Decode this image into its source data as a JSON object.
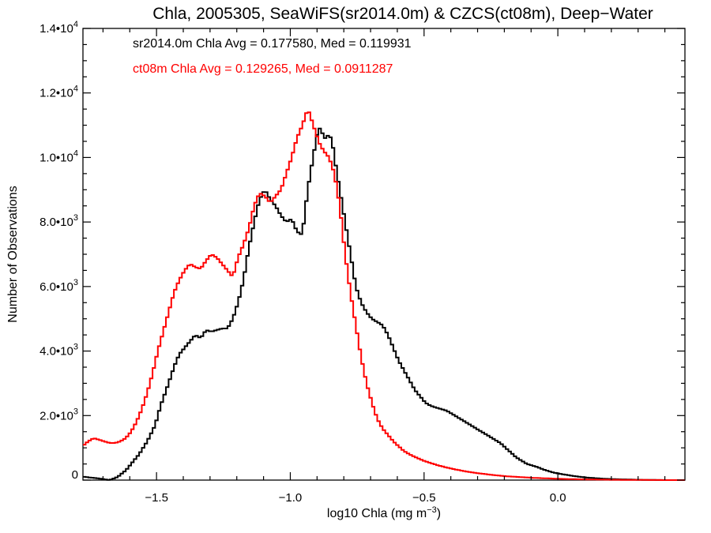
{
  "chart_data": {
    "type": "line",
    "title": "Chla, 2005305, SeaWiFS(sr2014.0m) & CZCS(ct08m), Deep−Water",
    "xlabel": "log10 Chla (mg m",
    "xlabel_sup": "−3",
    "xlabel_close": ")",
    "ylabel": "Number of Observations",
    "xlim": [
      -1.775,
      0.475
    ],
    "ylim": [
      0,
      14000
    ],
    "grid": false,
    "legend": "annotation text top-left",
    "x_ticks": [
      {
        "value": -1.5,
        "label": "−1.5"
      },
      {
        "value": -1.0,
        "label": "−1.0"
      },
      {
        "value": -0.5,
        "label": "−0.5"
      },
      {
        "value": 0.0,
        "label": "0.0"
      }
    ],
    "y_ticks": [
      {
        "value": 0,
        "label": "0",
        "exp": ""
      },
      {
        "value": 2000,
        "label": "2.0•10",
        "exp": "3"
      },
      {
        "value": 4000,
        "label": "4.0•10",
        "exp": "3"
      },
      {
        "value": 6000,
        "label": "6.0•10",
        "exp": "3"
      },
      {
        "value": 8000,
        "label": "8.0•10",
        "exp": "3"
      },
      {
        "value": 10000,
        "label": "1.0•10",
        "exp": "4"
      },
      {
        "value": 12000,
        "label": "1.2•10",
        "exp": "4"
      },
      {
        "value": 14000,
        "label": "1.4•10",
        "exp": "4"
      }
    ],
    "annotations": [
      {
        "text": "sr2014.0m Chla Avg = 0.177580, Med = 0.119931",
        "color": "#000000"
      },
      {
        "text": "ct08m Chla Avg = 0.129265, Med = 0.0911287",
        "color": "#ff0000"
      }
    ],
    "series": [
      {
        "color": "#000000",
        "points": [
          [
            -1.775,
            100
          ],
          [
            -1.72,
            50
          ],
          [
            -1.68,
            0
          ],
          [
            -1.65,
            100
          ],
          [
            -1.62,
            300
          ],
          [
            -1.6,
            500
          ],
          [
            -1.57,
            800
          ],
          [
            -1.54,
            1200
          ],
          [
            -1.51,
            1700
          ],
          [
            -1.49,
            2300
          ],
          [
            -1.46,
            3000
          ],
          [
            -1.44,
            3500
          ],
          [
            -1.42,
            3900
          ],
          [
            -1.39,
            4200
          ],
          [
            -1.36,
            4500
          ],
          [
            -1.34,
            4400
          ],
          [
            -1.32,
            4650
          ],
          [
            -1.3,
            4600
          ],
          [
            -1.28,
            4650
          ],
          [
            -1.26,
            4700
          ],
          [
            -1.24,
            4700
          ],
          [
            -1.22,
            5000
          ],
          [
            -1.2,
            5500
          ],
          [
            -1.18,
            6200
          ],
          [
            -1.16,
            7200
          ],
          [
            -1.14,
            8000
          ],
          [
            -1.12,
            8700
          ],
          [
            -1.1,
            9000
          ],
          [
            -1.08,
            8700
          ],
          [
            -1.06,
            8500
          ],
          [
            -1.04,
            8200
          ],
          [
            -1.02,
            8000
          ],
          [
            -1.0,
            8100
          ],
          [
            -0.98,
            7700
          ],
          [
            -0.96,
            7600
          ],
          [
            -0.94,
            9000
          ],
          [
            -0.92,
            10000
          ],
          [
            -0.905,
            10700
          ],
          [
            -0.89,
            11000
          ],
          [
            -0.88,
            10500
          ],
          [
            -0.87,
            10700
          ],
          [
            -0.85,
            10600
          ],
          [
            -0.84,
            10000
          ],
          [
            -0.82,
            9000
          ],
          [
            -0.8,
            8000
          ],
          [
            -0.78,
            7000
          ],
          [
            -0.76,
            6000
          ],
          [
            -0.74,
            5500
          ],
          [
            -0.72,
            5200
          ],
          [
            -0.7,
            5000
          ],
          [
            -0.68,
            4900
          ],
          [
            -0.66,
            4800
          ],
          [
            -0.64,
            4500
          ],
          [
            -0.62,
            4100
          ],
          [
            -0.6,
            3700
          ],
          [
            -0.58,
            3400
          ],
          [
            -0.56,
            3100
          ],
          [
            -0.54,
            2800
          ],
          [
            -0.52,
            2600
          ],
          [
            -0.5,
            2400
          ],
          [
            -0.48,
            2300
          ],
          [
            -0.46,
            2250
          ],
          [
            -0.44,
            2200
          ],
          [
            -0.42,
            2150
          ],
          [
            -0.4,
            2050
          ],
          [
            -0.38,
            1950
          ],
          [
            -0.36,
            1850
          ],
          [
            -0.34,
            1750
          ],
          [
            -0.32,
            1650
          ],
          [
            -0.3,
            1550
          ],
          [
            -0.28,
            1450
          ],
          [
            -0.26,
            1350
          ],
          [
            -0.24,
            1250
          ],
          [
            -0.22,
            1150
          ],
          [
            -0.2,
            1000
          ],
          [
            -0.18,
            850
          ],
          [
            -0.16,
            700
          ],
          [
            -0.14,
            600
          ],
          [
            -0.12,
            500
          ],
          [
            -0.1,
            450
          ],
          [
            -0.08,
            400
          ],
          [
            -0.06,
            330
          ],
          [
            -0.04,
            280
          ],
          [
            -0.02,
            230
          ],
          [
            0.0,
            200
          ],
          [
            0.05,
            130
          ],
          [
            0.1,
            80
          ],
          [
            0.15,
            50
          ],
          [
            0.2,
            30
          ],
          [
            0.25,
            20
          ],
          [
            0.3,
            10
          ],
          [
            0.35,
            5
          ],
          [
            0.4,
            0
          ],
          [
            0.475,
            0
          ]
        ]
      },
      {
        "color": "#ff0000",
        "points": [
          [
            -1.775,
            1100
          ],
          [
            -1.76,
            1200
          ],
          [
            -1.74,
            1300
          ],
          [
            -1.72,
            1250
          ],
          [
            -1.7,
            1200
          ],
          [
            -1.68,
            1150
          ],
          [
            -1.66,
            1150
          ],
          [
            -1.64,
            1200
          ],
          [
            -1.62,
            1300
          ],
          [
            -1.6,
            1500
          ],
          [
            -1.58,
            1800
          ],
          [
            -1.56,
            2200
          ],
          [
            -1.54,
            2700
          ],
          [
            -1.52,
            3300
          ],
          [
            -1.5,
            4000
          ],
          [
            -1.48,
            4600
          ],
          [
            -1.46,
            5200
          ],
          [
            -1.44,
            5800
          ],
          [
            -1.42,
            6200
          ],
          [
            -1.4,
            6500
          ],
          [
            -1.38,
            6700
          ],
          [
            -1.36,
            6600
          ],
          [
            -1.34,
            6550
          ],
          [
            -1.32,
            6800
          ],
          [
            -1.3,
            7000
          ],
          [
            -1.28,
            6900
          ],
          [
            -1.26,
            6700
          ],
          [
            -1.24,
            6500
          ],
          [
            -1.22,
            6300
          ],
          [
            -1.2,
            6900
          ],
          [
            -1.18,
            7300
          ],
          [
            -1.16,
            7800
          ],
          [
            -1.14,
            8500
          ],
          [
            -1.12,
            8900
          ],
          [
            -1.1,
            8800
          ],
          [
            -1.08,
            8600
          ],
          [
            -1.06,
            8800
          ],
          [
            -1.04,
            9000
          ],
          [
            -1.02,
            9500
          ],
          [
            -1.0,
            10000
          ],
          [
            -0.98,
            10600
          ],
          [
            -0.96,
            11000
          ],
          [
            -0.94,
            11500
          ],
          [
            -0.93,
            11300
          ],
          [
            -0.92,
            11000
          ],
          [
            -0.91,
            10800
          ],
          [
            -0.9,
            10500
          ],
          [
            -0.88,
            10200
          ],
          [
            -0.86,
            10000
          ],
          [
            -0.84,
            9500
          ],
          [
            -0.82,
            8500
          ],
          [
            -0.8,
            7000
          ],
          [
            -0.78,
            5800
          ],
          [
            -0.76,
            4800
          ],
          [
            -0.74,
            3800
          ],
          [
            -0.72,
            3000
          ],
          [
            -0.7,
            2400
          ],
          [
            -0.68,
            1900
          ],
          [
            -0.66,
            1600
          ],
          [
            -0.64,
            1400
          ],
          [
            -0.62,
            1200
          ],
          [
            -0.6,
            1050
          ],
          [
            -0.58,
            900
          ],
          [
            -0.56,
            800
          ],
          [
            -0.54,
            720
          ],
          [
            -0.52,
            650
          ],
          [
            -0.5,
            580
          ],
          [
            -0.45,
            450
          ],
          [
            -0.4,
            350
          ],
          [
            -0.35,
            270
          ],
          [
            -0.3,
            210
          ],
          [
            -0.25,
            160
          ],
          [
            -0.2,
            120
          ],
          [
            -0.1,
            70
          ],
          [
            0.0,
            40
          ],
          [
            0.1,
            20
          ],
          [
            0.2,
            10
          ],
          [
            0.3,
            5
          ],
          [
            0.4,
            0
          ],
          [
            0.475,
            0
          ]
        ]
      }
    ]
  }
}
